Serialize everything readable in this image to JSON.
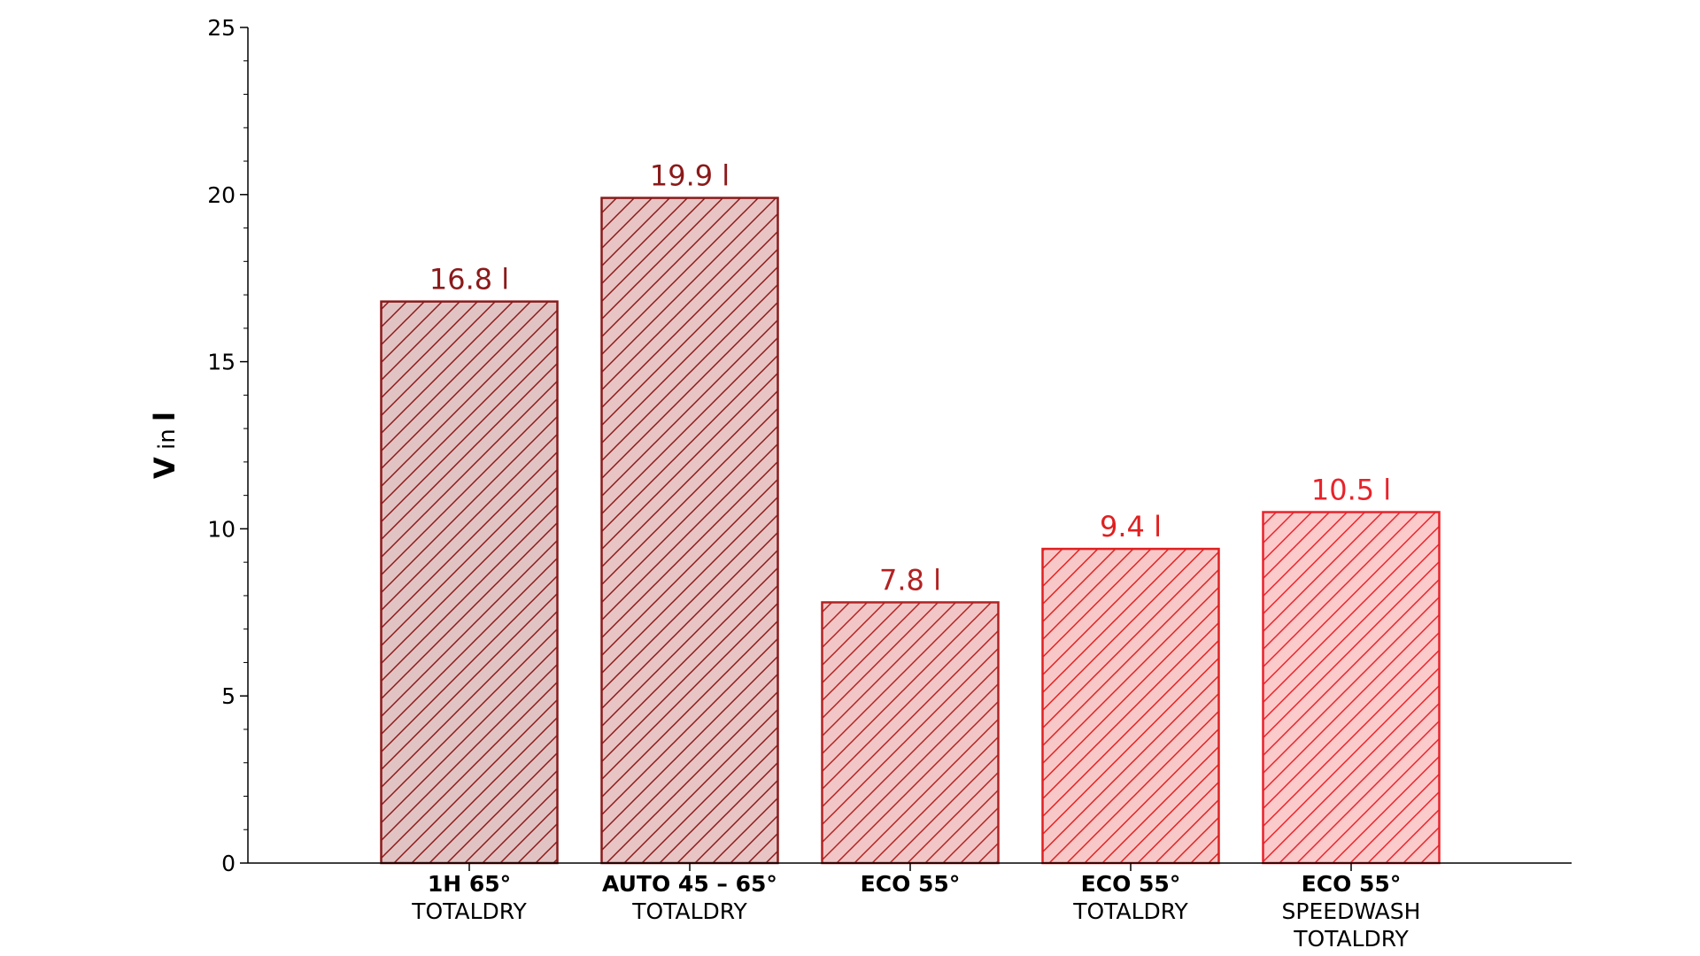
{
  "chart_data": {
    "type": "bar",
    "categories": [
      {
        "main": "1H 65°",
        "sub": [
          "TOTALDRY"
        ]
      },
      {
        "main": "AUTO 45 – 65°",
        "sub": [
          "TOTALDRY"
        ]
      },
      {
        "main": "ECO 55°",
        "sub": []
      },
      {
        "main": "ECO 55°",
        "sub": [
          "TOTALDRY"
        ]
      },
      {
        "main": "ECO 55°",
        "sub": [
          "SPEEDWASH",
          "TOTALDRY"
        ]
      }
    ],
    "values": [
      16.8,
      19.9,
      7.8,
      9.4,
      10.5
    ],
    "value_labels": [
      "16.8 l",
      "19.9 l",
      "7.8 l",
      "9.4 l",
      "10.5 l"
    ],
    "bar_edge_colors": [
      "#8B1A1A",
      "#8B1A1A",
      "#B22222",
      "#E02020",
      "#E8232B"
    ],
    "bar_fill_colors": [
      "#E2C3C3",
      "#E8C4C4",
      "#F2C6C6",
      "#F8C8C8",
      "#FBCACA"
    ],
    "hatch": "diagonal",
    "ylabel": {
      "bold": "V",
      "normal": " in ",
      "unit": "l"
    },
    "ylim": [
      0,
      25
    ],
    "yticks": [
      0,
      5,
      10,
      15,
      20,
      25
    ],
    "minor_tick_step": 1,
    "grid": false
  }
}
